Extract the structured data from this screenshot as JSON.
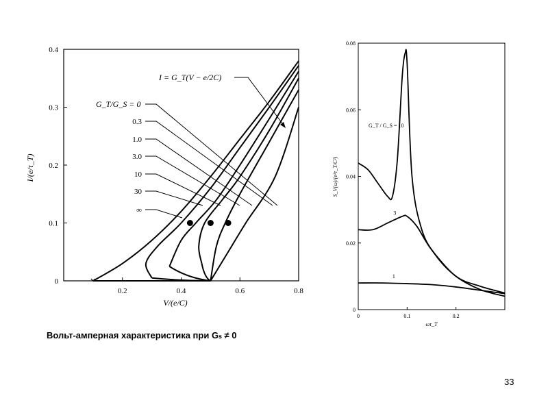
{
  "caption": "Вольт-амперная характеристика при Gₛ ≠ 0",
  "page_number": "33",
  "chart_data": [
    {
      "type": "line",
      "xlabel": "V/(e/C)",
      "ylabel": "I/(e/τ_T)",
      "xlim": [
        0,
        0.8
      ],
      "ylim": [
        0,
        0.4
      ],
      "x_ticks": [
        "0.2",
        "0.4",
        "0.6",
        "0.8"
      ],
      "y_ticks": [
        "0",
        "0.1",
        "0.2",
        "0.3",
        "0.4"
      ],
      "annotation_main": "I = G_T(V − e/2C)",
      "legend_title": "G_T/G_S = 0",
      "legend_values": [
        "0.3",
        "1.0",
        "3.0",
        "10",
        "30",
        "∞"
      ],
      "series": [
        {
          "points": [
            [
              0.1,
              0
            ],
            [
              0.2,
              0.03
            ],
            [
              0.3,
              0.07
            ],
            [
              0.4,
              0.12
            ],
            [
              0.5,
              0.18
            ],
            [
              0.6,
              0.245
            ],
            [
              0.7,
              0.31
            ],
            [
              0.8,
              0.38
            ]
          ]
        },
        {
          "points": [
            [
              0.3,
              0.005
            ],
            [
              0.28,
              0.03
            ],
            [
              0.32,
              0.06
            ],
            [
              0.4,
              0.1
            ],
            [
              0.5,
              0.16
            ],
            [
              0.6,
              0.23
            ],
            [
              0.7,
              0.3
            ],
            [
              0.8,
              0.372
            ]
          ]
        },
        {
          "points": [
            [
              0.36,
              0.025
            ],
            [
              0.4,
              0.07
            ],
            [
              0.45,
              0.1
            ],
            [
              0.52,
              0.14
            ],
            [
              0.6,
              0.2
            ],
            [
              0.7,
              0.28
            ],
            [
              0.8,
              0.362
            ]
          ]
        },
        {
          "points": [
            [
              0.47,
              0.03
            ],
            [
              0.46,
              0.06
            ],
            [
              0.48,
              0.1
            ],
            [
              0.54,
              0.14
            ],
            [
              0.6,
              0.18
            ],
            [
              0.7,
              0.26
            ],
            [
              0.8,
              0.35
            ]
          ]
        },
        {
          "points": [
            [
              0.5,
              0.0
            ],
            [
              0.52,
              0.06
            ],
            [
              0.55,
              0.1
            ],
            [
              0.6,
              0.15
            ],
            [
              0.7,
              0.24
            ],
            [
              0.8,
              0.33
            ]
          ]
        },
        {
          "points": [
            [
              0.5,
              0.0
            ],
            [
              0.56,
              0.05
            ],
            [
              0.62,
              0.1
            ],
            [
              0.72,
              0.18
            ],
            [
              0.8,
              0.3
            ]
          ]
        }
      ],
      "marker_points": [
        [
          0.43,
          0.1
        ],
        [
          0.5,
          0.1
        ],
        [
          0.56,
          0.1
        ]
      ]
    },
    {
      "type": "line",
      "xlabel": "ωτ_T",
      "ylabel": "S_V(ω)/(e²τ_T/C²)",
      "xlim": [
        0,
        0.3
      ],
      "ylim": [
        0,
        0.08
      ],
      "x_ticks": [
        "0",
        "0.1",
        "0.2"
      ],
      "y_ticks": [
        "0",
        "0.02",
        "0.04",
        "0.06",
        "0.08"
      ],
      "annotation_ratio": "G_T / G_S = 10",
      "series": [
        {
          "name": "10",
          "points": [
            [
              0,
              0.044
            ],
            [
              0.02,
              0.042
            ],
            [
              0.04,
              0.038
            ],
            [
              0.06,
              0.034
            ],
            [
              0.07,
              0.034
            ],
            [
              0.08,
              0.045
            ],
            [
              0.09,
              0.07
            ],
            [
              0.096,
              0.077
            ],
            [
              0.1,
              0.074
            ],
            [
              0.11,
              0.04
            ],
            [
              0.13,
              0.024
            ],
            [
              0.16,
              0.016
            ],
            [
              0.2,
              0.01
            ],
            [
              0.25,
              0.006
            ],
            [
              0.3,
              0.004
            ]
          ]
        },
        {
          "name": "3",
          "points": [
            [
              0,
              0.024
            ],
            [
              0.03,
              0.024
            ],
            [
              0.06,
              0.026
            ],
            [
              0.09,
              0.028
            ],
            [
              0.1,
              0.028
            ],
            [
              0.12,
              0.025
            ],
            [
              0.15,
              0.018
            ],
            [
              0.2,
              0.01
            ],
            [
              0.25,
              0.007
            ],
            [
              0.3,
              0.005
            ]
          ]
        },
        {
          "name": "1",
          "points": [
            [
              0,
              0.008
            ],
            [
              0.05,
              0.008
            ],
            [
              0.1,
              0.0078
            ],
            [
              0.15,
              0.0075
            ],
            [
              0.2,
              0.0068
            ],
            [
              0.25,
              0.0058
            ],
            [
              0.3,
              0.0048
            ]
          ]
        }
      ]
    }
  ]
}
